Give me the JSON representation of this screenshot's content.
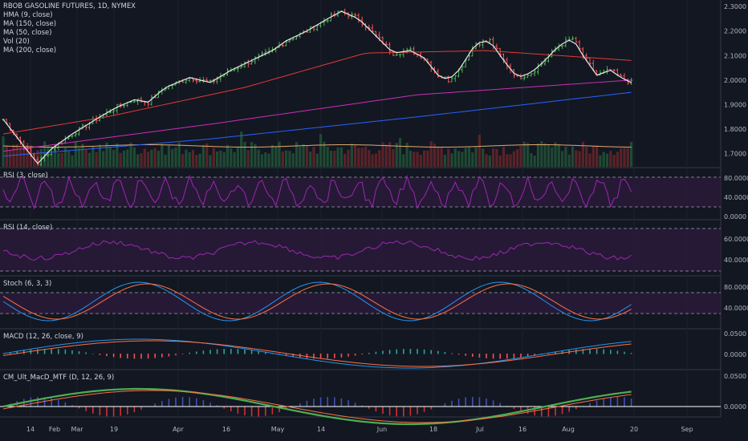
{
  "title": "RBOB GASOLINE FUTURES, 1D, NYMEX",
  "main_legend": [
    "HMA (9, close)",
    "MA (150, close)",
    "MA (50, close)",
    "Vol (20)",
    "MA (200, close)"
  ],
  "price_axis_labels": [
    "2.3000",
    "2.2000",
    "2.1000",
    "2.0000",
    "1.9000",
    "1.8000",
    "1.7000"
  ],
  "x_axis_labels": [
    "14",
    "Feb",
    "Mar",
    "19",
    "Apr",
    "16",
    "May",
    "14",
    "Jun",
    "18",
    "Jul",
    "16",
    "Aug",
    "20",
    "Sep"
  ],
  "panels": [
    {
      "label": "RSI (3, close)",
      "axis": [
        "80.0000",
        "40.0000",
        "0.0000"
      ]
    },
    {
      "label": "RSI (14, close)",
      "axis": [
        "60.0000",
        "40.0000"
      ]
    },
    {
      "label": "Stoch (6, 3, 3)",
      "axis": [
        "80.0000",
        "40.0000"
      ]
    },
    {
      "label": "MACD (12, 26, close, 9)",
      "axis": [
        "0.0500",
        "0.0000"
      ]
    },
    {
      "label": "CM_Ult_MacD_MTF (D, 12, 26, 9)",
      "axis": [
        "0.0500",
        "0.0000"
      ]
    }
  ],
  "colors": {
    "bull": "#4caf50",
    "bear": "#ef5350",
    "hma": "#e8e8e8",
    "ma150": "#cc2fb8",
    "ma50": "#e53935",
    "ma200": "#2962ff",
    "rsi": "#9c27b0",
    "stoch_k": "#2196f3",
    "stoch_d": "#ff7043",
    "macd": "#2196f3",
    "signal": "#ff7043"
  },
  "chart_data": {
    "type": "candlestick",
    "title": "RBOB GASOLINE FUTURES, 1D, NYMEX",
    "x_range": [
      "Jan",
      "Sep"
    ],
    "ylim": [
      1.64,
      2.31
    ],
    "price_path": [
      [
        0,
        1.84
      ],
      [
        6,
        1.73
      ],
      [
        10,
        1.66
      ],
      [
        14,
        1.72
      ],
      [
        20,
        1.78
      ],
      [
        28,
        1.85
      ],
      [
        33,
        1.89
      ],
      [
        38,
        1.92
      ],
      [
        42,
        1.91
      ],
      [
        47,
        1.97
      ],
      [
        54,
        2.01
      ],
      [
        60,
        1.99
      ],
      [
        66,
        2.04
      ],
      [
        72,
        2.08
      ],
      [
        78,
        2.12
      ],
      [
        82,
        2.16
      ],
      [
        88,
        2.2
      ],
      [
        94,
        2.25
      ],
      [
        98,
        2.28
      ],
      [
        103,
        2.25
      ],
      [
        108,
        2.18
      ],
      [
        113,
        2.11
      ],
      [
        118,
        2.12
      ],
      [
        122,
        2.09
      ],
      [
        126,
        2.02
      ],
      [
        129,
        2.0
      ],
      [
        132,
        2.04
      ],
      [
        137,
        2.15
      ],
      [
        141,
        2.16
      ],
      [
        145,
        2.08
      ],
      [
        149,
        2.01
      ],
      [
        153,
        2.03
      ],
      [
        157,
        2.08
      ],
      [
        161,
        2.14
      ],
      [
        165,
        2.17
      ],
      [
        168,
        2.1
      ],
      [
        172,
        2.02
      ],
      [
        176,
        2.04
      ],
      [
        179,
        2.01
      ],
      [
        182,
        1.99
      ]
    ],
    "ma150_path": [
      [
        0,
        1.71
      ],
      [
        60,
        1.82
      ],
      [
        120,
        1.94
      ],
      [
        182,
        2.0
      ]
    ],
    "ma50_path": [
      [
        0,
        1.78
      ],
      [
        30,
        1.85
      ],
      [
        70,
        1.97
      ],
      [
        105,
        2.11
      ],
      [
        140,
        2.12
      ],
      [
        182,
        2.08
      ]
    ],
    "ma200_path": [
      [
        0,
        1.69
      ],
      [
        60,
        1.76
      ],
      [
        120,
        1.85
      ],
      [
        182,
        1.95
      ]
    ]
  }
}
